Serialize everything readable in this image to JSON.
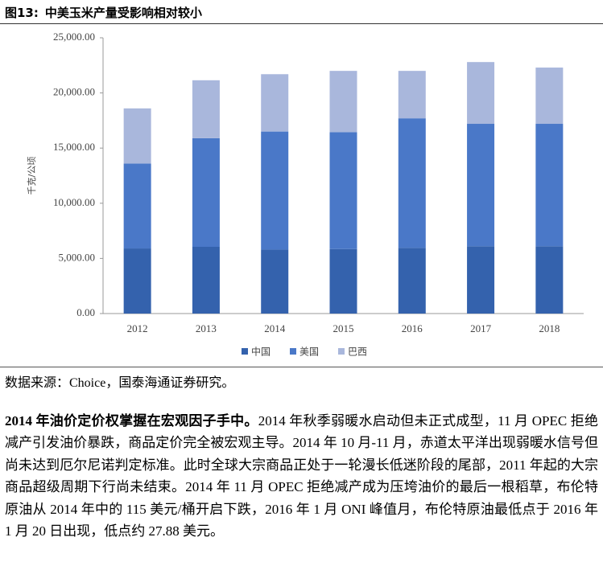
{
  "figure_label": "图13:",
  "chart_data": {
    "type": "stacked_bar",
    "title": "中美玉米产量受影响相对较小",
    "y_label": "千克/公顷",
    "categories": [
      "2012",
      "2013",
      "2014",
      "2015",
      "2016",
      "2017",
      "2018"
    ],
    "series": [
      {
        "name": "中国",
        "color": "#3462ad",
        "values": [
          5900,
          6050,
          5800,
          5850,
          5950,
          6100,
          6100
        ]
      },
      {
        "name": "美国",
        "color": "#4a78c8",
        "values": [
          7700,
          9850,
          10700,
          10600,
          11750,
          11100,
          11100
        ]
      },
      {
        "name": "巴西",
        "color": "#a9b7dc",
        "values": [
          5000,
          5250,
          5200,
          5550,
          4300,
          5600,
          5100
        ]
      }
    ],
    "ylim": [
      0,
      25000
    ],
    "yticks": [
      {
        "value": 0,
        "label": "0.00"
      },
      {
        "value": 5000,
        "label": "5,000.00"
      },
      {
        "value": 10000,
        "label": "10,000.00"
      },
      {
        "value": 15000,
        "label": "15,000.00"
      },
      {
        "value": 20000,
        "label": "20,000.00"
      },
      {
        "value": 25000,
        "label": "25,000.00"
      }
    ],
    "grid": false,
    "legend": "bottom"
  },
  "source": "数据来源：Choice，国泰海通证券研究。",
  "paragraph": {
    "lead": "2014 年油价定价权掌握在宏观因子手中。",
    "body": "2014 年秋季弱暖水启动但未正式成型，11 月 OPEC 拒绝减产引发油价暴跌，商品定价完全被宏观主导。2014 年 10 月-11 月，赤道太平洋出现弱暖水信号但尚未达到厄尔尼诺判定标准。此时全球大宗商品正处于一轮漫长低迷阶段的尾部，2011 年起的大宗商品超级周期下行尚未结束。2014 年 11 月 OPEC 拒绝减产成为压垮油价的最后一根稻草，布伦特原油从 2014 年中的 115 美元/桶开启下跌，2016 年 1 月 ONI 峰值月，布伦特原油最低点于 2016 年 1 月 20 日出现，低点约 27.88 美元。"
  }
}
